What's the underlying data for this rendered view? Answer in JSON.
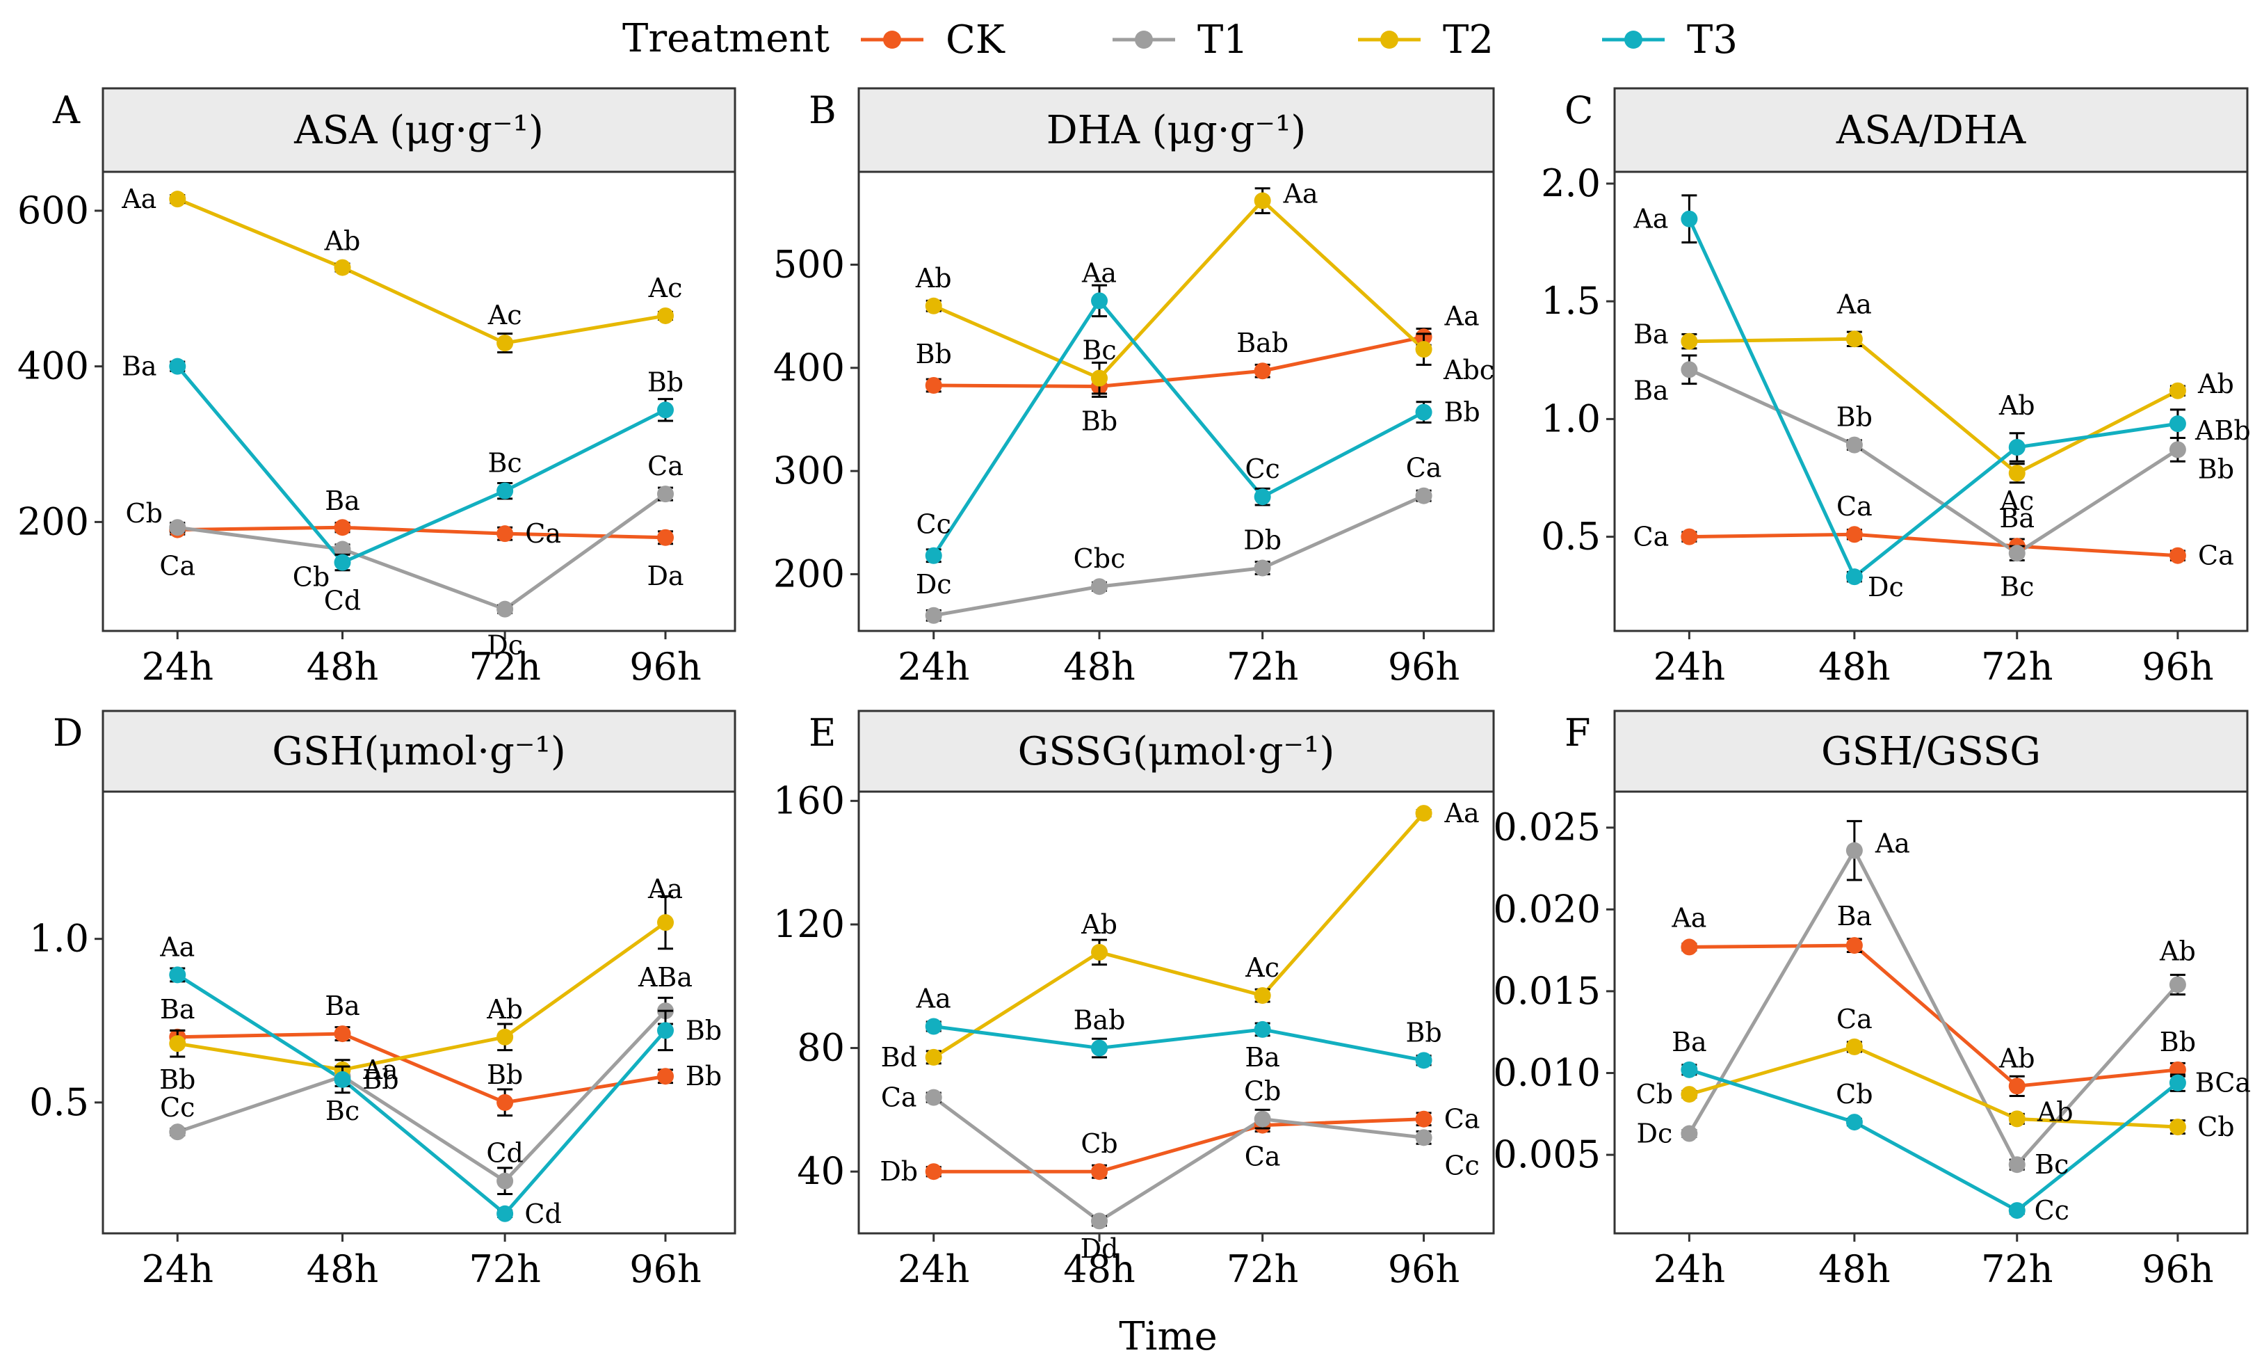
{
  "legend": {
    "title": "Treatment",
    "items": [
      {
        "name": "CK",
        "color": "#F05A1E"
      },
      {
        "name": "T1",
        "color": "#9E9E9E"
      },
      {
        "name": "T2",
        "color": "#E6B800"
      },
      {
        "name": "T3",
        "color": "#12AFC0"
      }
    ]
  },
  "xlabel": "Time",
  "chart_data": [
    {
      "type": "line",
      "panel": "A",
      "title": "ASA (μg·g⁻¹)",
      "categories": [
        "24h",
        "48h",
        "72h",
        "96h"
      ],
      "ylim": [
        60,
        650
      ],
      "yticks": [
        200,
        400,
        600
      ],
      "yticklabels": [
        "200",
        "400",
        "600"
      ],
      "series": [
        {
          "name": "CK",
          "values": [
            190,
            193,
            185,
            180
          ],
          "errors": [
            6,
            6,
            8,
            8
          ],
          "labels": [
            "Ca",
            "Ba",
            "Ca",
            "Da"
          ]
        },
        {
          "name": "T1",
          "values": [
            193,
            165,
            88,
            236
          ],
          "errors": [
            6,
            6,
            5,
            8
          ],
          "labels": [
            "Cb",
            "Cb",
            "Dc",
            "Ca"
          ]
        },
        {
          "name": "T2",
          "values": [
            615,
            527,
            430,
            465
          ],
          "errors": [
            5,
            5,
            12,
            5
          ],
          "labels": [
            "Aa",
            "Ab",
            "Ac",
            "Ac"
          ]
        },
        {
          "name": "T3",
          "values": [
            400,
            148,
            240,
            344
          ],
          "errors": [
            6,
            10,
            10,
            14
          ],
          "labels": [
            "Ba",
            "Cd",
            "Bc",
            "Bb"
          ]
        }
      ]
    },
    {
      "type": "line",
      "panel": "B",
      "title": "DHA (μg·g⁻¹)",
      "categories": [
        "24h",
        "48h",
        "72h",
        "96h"
      ],
      "ylim": [
        145,
        590
      ],
      "yticks": [
        200,
        300,
        400,
        500
      ],
      "yticklabels": [
        "200",
        "300",
        "400",
        "500"
      ],
      "series": [
        {
          "name": "CK",
          "values": [
            383,
            382,
            397,
            430
          ],
          "errors": [
            6,
            10,
            6,
            8
          ],
          "labels": [
            "Bb",
            "Bb",
            "Bab",
            "Aa"
          ]
        },
        {
          "name": "T1",
          "values": [
            160,
            188,
            206,
            276
          ],
          "errors": [
            5,
            4,
            6,
            5
          ],
          "labels": [
            "Dc",
            "Cbc",
            "Db",
            "Ca"
          ]
        },
        {
          "name": "T2",
          "values": [
            460,
            390,
            562,
            418
          ],
          "errors": [
            5,
            15,
            12,
            15
          ],
          "labels": [
            "Ab",
            "Bc",
            "Aa",
            "Abc"
          ]
        },
        {
          "name": "T3",
          "values": [
            218,
            465,
            275,
            357
          ],
          "errors": [
            6,
            15,
            8,
            10
          ],
          "labels": [
            "Cc",
            "Aa",
            "Cc",
            "Bb"
          ]
        }
      ]
    },
    {
      "type": "line",
      "panel": "C",
      "title": "ASA/DHA",
      "categories": [
        "24h",
        "48h",
        "72h",
        "96h"
      ],
      "ylim": [
        0.1,
        2.05
      ],
      "yticks": [
        0.5,
        1.0,
        1.5,
        2.0
      ],
      "yticklabels": [
        "0.5",
        "1.0",
        "1.5",
        "2.0"
      ],
      "series": [
        {
          "name": "CK",
          "values": [
            0.5,
            0.51,
            0.46,
            0.42
          ],
          "errors": [
            0.02,
            0.02,
            0.03,
            0.02
          ],
          "labels": [
            "Ca",
            "Ca",
            "Ba",
            "Ca"
          ]
        },
        {
          "name": "T1",
          "values": [
            1.21,
            0.89,
            0.43,
            0.87
          ],
          "errors": [
            0.06,
            0.02,
            0.03,
            0.05
          ],
          "labels": [
            "Ba",
            "Bb",
            "Bc",
            "Bb"
          ]
        },
        {
          "name": "T2",
          "values": [
            1.33,
            1.34,
            0.77,
            1.12
          ],
          "errors": [
            0.03,
            0.03,
            0.04,
            0.02
          ],
          "labels": [
            "Ba",
            "Aa",
            "Ac",
            "Ab"
          ]
        },
        {
          "name": "T3",
          "values": [
            1.85,
            0.33,
            0.88,
            0.98
          ],
          "errors": [
            0.1,
            0.02,
            0.06,
            0.06
          ],
          "labels": [
            "Aa",
            "Dc",
            "Ab",
            "ABb"
          ]
        }
      ]
    },
    {
      "type": "line",
      "panel": "D",
      "title": "GSH(μmol·g⁻¹)",
      "categories": [
        "24h",
        "48h",
        "72h",
        "96h"
      ],
      "ylim": [
        0.1,
        1.45
      ],
      "yticks": [
        0.5,
        1.0
      ],
      "yticklabels": [
        "0.5",
        "1.0"
      ],
      "series": [
        {
          "name": "CK",
          "values": [
            0.7,
            0.71,
            0.5,
            0.58
          ],
          "errors": [
            0.02,
            0.02,
            0.04,
            0.02
          ],
          "labels": [
            "Ba",
            "Ba",
            "Bb",
            "Bb"
          ]
        },
        {
          "name": "T1",
          "values": [
            0.41,
            0.58,
            0.26,
            0.78
          ],
          "errors": [
            0.01,
            0.03,
            0.04,
            0.04
          ],
          "labels": [
            "Cc",
            "Bc",
            "Cd",
            "ABa"
          ]
        },
        {
          "name": "T2",
          "values": [
            0.68,
            0.6,
            0.7,
            1.05
          ],
          "errors": [
            0.04,
            0.03,
            0.04,
            0.08
          ],
          "labels": [
            "Bb",
            "Aa",
            "Ab",
            "Aa"
          ]
        },
        {
          "name": "T3",
          "values": [
            0.89,
            0.57,
            0.16,
            0.72
          ],
          "errors": [
            0.02,
            0.04,
            0.01,
            0.06
          ],
          "labels": [
            "Aa",
            "Bb",
            "Cd",
            "Bb"
          ]
        }
      ]
    },
    {
      "type": "line",
      "panel": "E",
      "title": "GSSG(μmol·g⁻¹)",
      "categories": [
        "24h",
        "48h",
        "72h",
        "96h"
      ],
      "ylim": [
        20,
        163
      ],
      "yticks": [
        40,
        80,
        120,
        160
      ],
      "yticklabels": [
        "40",
        "80",
        "120",
        "160"
      ],
      "series": [
        {
          "name": "CK",
          "values": [
            40,
            40,
            55,
            57
          ],
          "errors": [
            1.5,
            2,
            2,
            2
          ],
          "labels": [
            "Db",
            "Cb",
            "Ca",
            "Ca"
          ]
        },
        {
          "name": "T1",
          "values": [
            64,
            24,
            57,
            51
          ],
          "errors": [
            1.5,
            1.5,
            3,
            2
          ],
          "labels": [
            "Ca",
            "Dd",
            "Cb",
            "Cc"
          ]
        },
        {
          "name": "T2",
          "values": [
            77,
            111,
            97,
            156
          ],
          "errors": [
            2,
            4,
            2,
            1
          ],
          "labels": [
            "Bd",
            "Ab",
            "Ac",
            "Aa"
          ]
        },
        {
          "name": "T3",
          "values": [
            87,
            80,
            86,
            76
          ],
          "errors": [
            1.5,
            3,
            2,
            1.5
          ],
          "labels": [
            "Aa",
            "Bab",
            "Ba",
            "Bb"
          ]
        }
      ]
    },
    {
      "type": "line",
      "panel": "F",
      "title": "GSH/GSSG",
      "categories": [
        "24h",
        "48h",
        "72h",
        "96h"
      ],
      "ylim": [
        0.0002,
        0.0272
      ],
      "yticks": [
        0.005,
        0.01,
        0.015,
        0.02,
        0.025
      ],
      "yticklabels": [
        "0.005",
        "0.010",
        "0.015",
        "0.020",
        "0.025"
      ],
      "series": [
        {
          "name": "CK",
          "values": [
            0.0177,
            0.0178,
            0.0092,
            0.0102
          ],
          "errors": [
            0.0002,
            0.0004,
            0.0006,
            0.0004
          ],
          "labels": [
            "Aa",
            "Ba",
            "Ab",
            "Bb"
          ]
        },
        {
          "name": "T1",
          "values": [
            0.0063,
            0.0236,
            0.0044,
            0.0154
          ],
          "errors": [
            0.0002,
            0.0018,
            0.0003,
            0.0006
          ],
          "labels": [
            "Dc",
            "Aa",
            "Bc",
            "Ab"
          ]
        },
        {
          "name": "T2",
          "values": [
            0.0087,
            0.0116,
            0.0072,
            0.0067
          ],
          "errors": [
            0.0002,
            0.0003,
            0.0003,
            0.0004
          ],
          "labels": [
            "Cb",
            "Ca",
            "Ab",
            "Cb"
          ]
        },
        {
          "name": "T3",
          "values": [
            0.0102,
            0.007,
            0.0016,
            0.0094
          ],
          "errors": [
            0.0003,
            0.0002,
            0.0002,
            0.0005
          ],
          "labels": [
            "Ba",
            "Cb",
            "Cc",
            "BCa"
          ]
        }
      ]
    }
  ]
}
